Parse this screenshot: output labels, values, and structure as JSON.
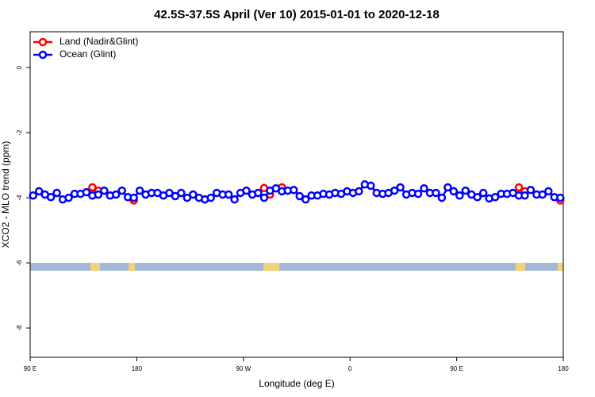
{
  "chart_data": {
    "type": "line",
    "title": "42.5S-37.5S April (Ver 10)   2015-01-01 to 2020-12-18",
    "x_label": "Longitude (deg E)",
    "y_label": "XCO2 - MLO trend (ppm)",
    "xlim": [
      90,
      540
    ],
    "xticks": [
      {
        "value": 90,
        "label": "90 E"
      },
      {
        "value": 180,
        "label": "180"
      },
      {
        "value": 270,
        "label": "90 W"
      },
      {
        "value": 360,
        "label": "0"
      },
      {
        "value": 450,
        "label": "90 E"
      },
      {
        "value": 540,
        "label": "180"
      }
    ],
    "ylim": [
      -8.9,
      1.1
    ],
    "yticks": [
      0,
      -2,
      -4,
      -6,
      -8
    ],
    "legend": "top-left",
    "series": [
      {
        "name": "Land (Nadir&Glint)",
        "color": "#ff0000",
        "x": [
          142.5,
          147.5,
          177.5,
          287.5,
          292.5,
          302.5,
          502.5,
          507.5,
          537.5
        ],
        "values": [
          -3.68,
          -3.78,
          -4.08,
          -3.7,
          -3.9,
          -3.68,
          -3.68,
          -3.8,
          -4.08
        ]
      },
      {
        "name": "Ocean (Glint)",
        "color": "#0000ff",
        "x": [
          92.5,
          97.5,
          102.5,
          107.5,
          112.5,
          117.5,
          122.5,
          127.5,
          132.5,
          137.5,
          142.5,
          147.5,
          152.5,
          157.5,
          162.5,
          167.5,
          172.5,
          177.5,
          182.5,
          187.5,
          192.5,
          197.5,
          202.5,
          207.5,
          212.5,
          217.5,
          222.5,
          227.5,
          232.5,
          237.5,
          242.5,
          247.5,
          252.5,
          257.5,
          262.5,
          267.5,
          272.5,
          277.5,
          282.5,
          287.5,
          292.5,
          297.5,
          302.5,
          307.5,
          312.5,
          317.5,
          322.5,
          327.5,
          332.5,
          337.5,
          342.5,
          347.5,
          352.5,
          357.5,
          362.5,
          367.5,
          372.5,
          377.5,
          382.5,
          387.5,
          392.5,
          397.5,
          402.5,
          407.5,
          412.5,
          417.5,
          422.5,
          427.5,
          432.5,
          437.5,
          442.5,
          447.5,
          452.5,
          457.5,
          462.5,
          467.5,
          472.5,
          477.5,
          482.5,
          487.5,
          492.5,
          497.5,
          502.5,
          507.5,
          512.5,
          517.5,
          522.5,
          527.5,
          532.5,
          537.5
        ],
        "values": [
          -3.93,
          -3.8,
          -3.9,
          -3.98,
          -3.85,
          -4.05,
          -4.0,
          -3.88,
          -3.88,
          -3.83,
          -3.93,
          -3.9,
          -3.78,
          -3.93,
          -3.9,
          -3.78,
          -3.98,
          -4.0,
          -3.78,
          -3.9,
          -3.85,
          -3.85,
          -3.93,
          -3.85,
          -3.95,
          -3.85,
          -4.0,
          -3.9,
          -4.0,
          -4.05,
          -4.0,
          -3.85,
          -3.9,
          -3.9,
          -4.05,
          -3.85,
          -3.78,
          -3.9,
          -3.85,
          -4.0,
          -3.78,
          -3.71,
          -3.8,
          -3.78,
          -3.76,
          -3.95,
          -4.05,
          -3.93,
          -3.93,
          -3.88,
          -3.9,
          -3.85,
          -3.88,
          -3.8,
          -3.85,
          -3.8,
          -3.59,
          -3.63,
          -3.85,
          -3.88,
          -3.85,
          -3.78,
          -3.68,
          -3.9,
          -3.85,
          -3.88,
          -3.71,
          -3.85,
          -3.85,
          -4.0,
          -3.68,
          -3.8,
          -3.93,
          -3.78,
          -3.9,
          -3.98,
          -3.85,
          -4.02,
          -3.98,
          -3.88,
          -3.88,
          -3.85,
          -3.93,
          -3.93,
          -3.76,
          -3.9,
          -3.9,
          -3.8,
          -3.98,
          -4.0
        ]
      }
    ]
  }
}
